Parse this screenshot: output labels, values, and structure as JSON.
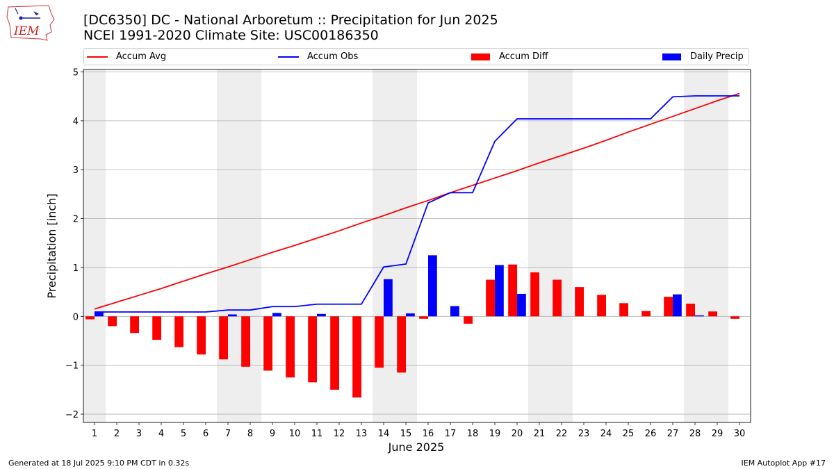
{
  "logo_text": "IEM",
  "title_line1": "[DC6350] DC - National Arboretum :: Precipitation for Jun 2025",
  "title_line2": "NCEI 1991-2020 Climate Site: USC00186350",
  "footer_left": "Generated at 18 Jul 2025 9:10 PM CDT in 0.32s",
  "footer_right": "IEM Autoplot App #17",
  "colors": {
    "accum_avg": "#ff0000",
    "accum_obs": "#0000ff",
    "accum_diff": "#ff0000",
    "daily_precip": "#0000ff",
    "weekend_shade": "#eeeeee",
    "grid": "#b0b0b0"
  },
  "legend": [
    {
      "label": "Accum Avg",
      "kind": "line",
      "color": "#ff0000"
    },
    {
      "label": "Accum Obs",
      "kind": "line",
      "color": "#0000ff"
    },
    {
      "label": "Accum Diff",
      "kind": "bar",
      "color": "#ff0000"
    },
    {
      "label": "Daily Precip",
      "kind": "bar",
      "color": "#0000ff"
    }
  ],
  "chart_data": {
    "type": "bar",
    "xlabel": "June 2025",
    "ylabel": "Precipitation [inch]",
    "xlim": [
      0.5,
      30.5
    ],
    "ylim": [
      -2.17,
      5.05
    ],
    "yticks": [
      -2,
      -1,
      0,
      1,
      2,
      3,
      4,
      5
    ],
    "ytick_labels": [
      "−2",
      "−1",
      "0",
      "1",
      "2",
      "3",
      "4",
      "5"
    ],
    "grid": "horizontal",
    "legend_position": "top",
    "weekend_shading": [
      [
        0.5,
        1.5
      ],
      [
        6.5,
        8.5
      ],
      [
        13.5,
        15.5
      ],
      [
        20.5,
        22.5
      ],
      [
        27.5,
        29.5
      ]
    ],
    "days": [
      1,
      2,
      3,
      4,
      5,
      6,
      7,
      8,
      9,
      10,
      11,
      12,
      13,
      14,
      15,
      16,
      17,
      18,
      19,
      20,
      21,
      22,
      23,
      24,
      25,
      26,
      27,
      28,
      29,
      30
    ],
    "series": [
      {
        "name": "Accum Avg",
        "type": "line",
        "values": [
          0.15,
          0.29,
          0.43,
          0.57,
          0.72,
          0.87,
          1.01,
          1.16,
          1.31,
          1.45,
          1.6,
          1.75,
          1.91,
          2.06,
          2.22,
          2.37,
          2.53,
          2.68,
          2.83,
          2.98,
          3.14,
          3.29,
          3.44,
          3.6,
          3.77,
          3.93,
          4.09,
          4.25,
          4.41,
          4.56
        ]
      },
      {
        "name": "Accum Obs",
        "type": "line",
        "values": [
          0.09,
          0.09,
          0.09,
          0.09,
          0.09,
          0.09,
          0.13,
          0.13,
          0.2,
          0.2,
          0.25,
          0.25,
          0.25,
          1.01,
          1.07,
          2.32,
          2.53,
          2.53,
          3.58,
          4.04,
          4.04,
          4.04,
          4.04,
          4.04,
          4.04,
          4.04,
          4.49,
          4.51,
          4.51,
          4.51
        ]
      },
      {
        "name": "Accum Diff",
        "type": "bar",
        "values": [
          -0.06,
          -0.2,
          -0.34,
          -0.48,
          -0.63,
          -0.78,
          -0.88,
          -1.03,
          -1.11,
          -1.25,
          -1.35,
          -1.5,
          -1.66,
          -1.05,
          -1.15,
          -0.05,
          0.0,
          -0.15,
          0.75,
          1.06,
          0.9,
          0.75,
          0.6,
          0.44,
          0.27,
          0.11,
          0.4,
          0.26,
          0.1,
          -0.05
        ]
      },
      {
        "name": "Daily Precip",
        "type": "bar",
        "values": [
          0.09,
          0,
          0,
          0,
          0,
          0,
          0.04,
          0,
          0.07,
          0,
          0.05,
          0,
          0,
          0.76,
          0.06,
          1.25,
          0.21,
          0,
          1.05,
          0.46,
          0,
          0,
          0,
          0,
          0,
          0,
          0.45,
          0.02,
          0,
          0
        ]
      }
    ]
  }
}
